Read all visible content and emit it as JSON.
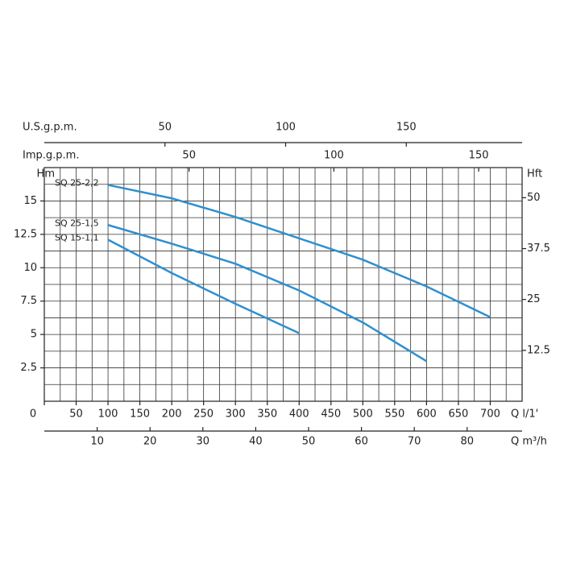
{
  "chart_data": {
    "type": "line",
    "xlabel": "Q l/1'",
    "ylabel": "Hm",
    "y2label": "Hft",
    "xlim": [
      0,
      750
    ],
    "xticks": [
      0,
      50,
      100,
      150,
      200,
      250,
      300,
      350,
      400,
      450,
      500,
      550,
      600,
      650,
      700
    ],
    "ylim": [
      0,
      17.5
    ],
    "yticks": [
      2.5,
      5,
      7.5,
      10,
      12.5,
      15
    ],
    "y2lim": [
      0,
      57.4
    ],
    "y2ticks": [
      12.5,
      25,
      37.5,
      50
    ],
    "grid": true,
    "grid_x_step": 25,
    "grid_y_step": 1.25,
    "extra_x_axes": [
      {
        "label": "Q m³/h",
        "xlim": [
          0,
          90.4
        ],
        "xticks": [
          10,
          20,
          30,
          40,
          50,
          60,
          70,
          80
        ]
      },
      {
        "label": "U.S.g.p.m.",
        "xlim": [
          0,
          198
        ],
        "xticks": [
          50,
          100,
          150
        ]
      },
      {
        "label": "Imp.g.p.m.",
        "xlim": [
          0,
          165
        ],
        "xticks": [
          50,
          100,
          150
        ]
      }
    ],
    "series": [
      {
        "name": "SQ 25-2,2",
        "color": "#2f8fd0",
        "x": [
          100,
          200,
          300,
          400,
          500,
          600,
          700
        ],
        "values": [
          16.2,
          15.2,
          13.8,
          12.2,
          10.6,
          8.6,
          6.3
        ]
      },
      {
        "name": "SQ 25-1,5",
        "color": "#2f8fd0",
        "x": [
          100,
          200,
          300,
          400,
          500,
          600
        ],
        "values": [
          13.2,
          11.8,
          10.3,
          8.3,
          5.9,
          3.0
        ]
      },
      {
        "name": "SQ 15-1,1",
        "color": "#2f8fd0",
        "x": [
          100,
          200,
          300,
          400
        ],
        "values": [
          12.1,
          9.6,
          7.3,
          5.1
        ]
      }
    ]
  }
}
